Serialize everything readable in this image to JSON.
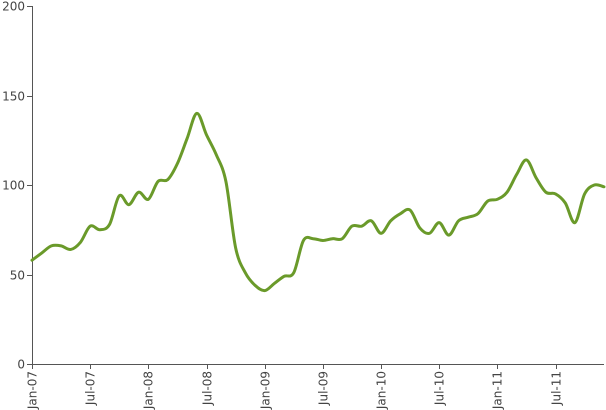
{
  "chart_data": {
    "type": "line",
    "title": "",
    "xlabel": "",
    "ylabel": "",
    "ylim": [
      0,
      200
    ],
    "y_ticks": [
      0,
      50,
      100,
      150,
      200
    ],
    "x_range": [
      "2007-01",
      "2011-12"
    ],
    "x_tick_labels": [
      {
        "date": "2007-01",
        "label": "Jan-07"
      },
      {
        "date": "2007-07",
        "label": "Jul-07"
      },
      {
        "date": "2008-01",
        "label": "Jan-08"
      },
      {
        "date": "2008-07",
        "label": "Jul-08"
      },
      {
        "date": "2009-01",
        "label": "Jan-09"
      },
      {
        "date": "2009-07",
        "label": "Jul-09"
      },
      {
        "date": "2010-01",
        "label": "Jan-10"
      },
      {
        "date": "2010-07",
        "label": "Jul-10"
      },
      {
        "date": "2011-01",
        "label": "Jan-11"
      },
      {
        "date": "2011-07",
        "label": "Jul-11"
      }
    ],
    "grid": false,
    "legend": "none",
    "series": [
      {
        "color": "#6a9a2a",
        "x": [
          "2007-01",
          "2007-02",
          "2007-03",
          "2007-04",
          "2007-05",
          "2007-06",
          "2007-07",
          "2007-08",
          "2007-09",
          "2007-10",
          "2007-11",
          "2007-12",
          "2008-01",
          "2008-02",
          "2008-03",
          "2008-04",
          "2008-05",
          "2008-06",
          "2008-07",
          "2008-08",
          "2008-09",
          "2008-10",
          "2008-11",
          "2008-12",
          "2009-01",
          "2009-02",
          "2009-03",
          "2009-04",
          "2009-05",
          "2009-06",
          "2009-07",
          "2009-08",
          "2009-09",
          "2009-10",
          "2009-11",
          "2009-12",
          "2010-01",
          "2010-02",
          "2010-03",
          "2010-04",
          "2010-05",
          "2010-06",
          "2010-07",
          "2010-08",
          "2010-09",
          "2010-10",
          "2010-11",
          "2010-12",
          "2011-01",
          "2011-02",
          "2011-03",
          "2011-04",
          "2011-05",
          "2011-06",
          "2011-07",
          "2011-08",
          "2011-09",
          "2011-10",
          "2011-11",
          "2011-12"
        ],
        "y": [
          58,
          62,
          66,
          66,
          64,
          68,
          77,
          75,
          78,
          94,
          89,
          96,
          92,
          102,
          103,
          112,
          126,
          140,
          128,
          117,
          102,
          65,
          51,
          44,
          41,
          45,
          49,
          51,
          69,
          70,
          69,
          70,
          70,
          77,
          77,
          80,
          73,
          80,
          84,
          86,
          76,
          73,
          79,
          72,
          80,
          82,
          84,
          91,
          92,
          96,
          106,
          114,
          104,
          96,
          95,
          90,
          79,
          95,
          100,
          99
        ]
      }
    ]
  }
}
